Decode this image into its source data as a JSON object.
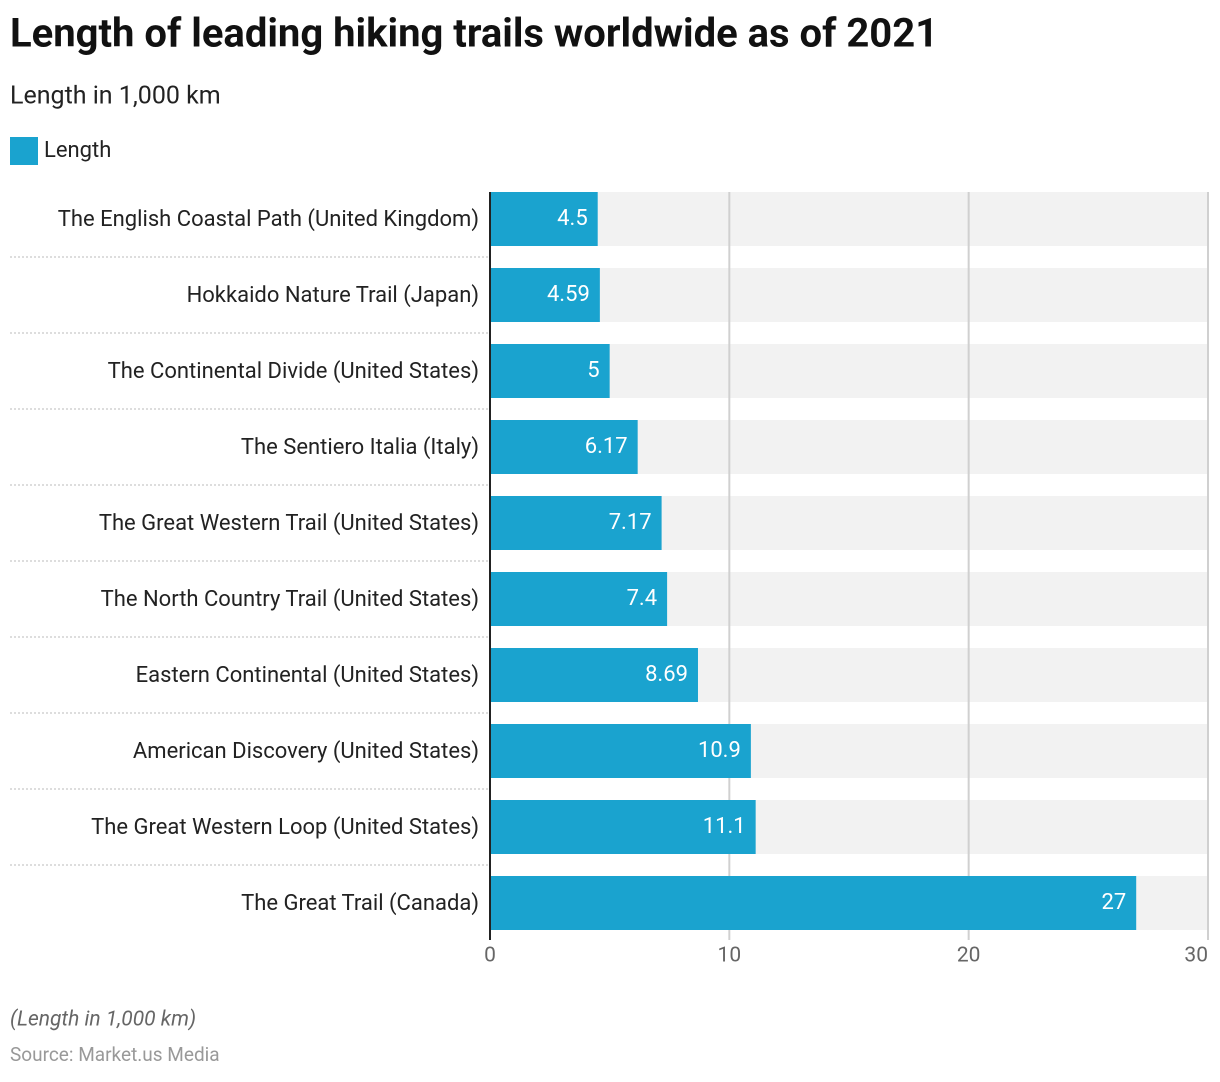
{
  "chart_data": {
    "type": "hbar",
    "title": "Length of leading hiking trails worldwide as of 2021",
    "subtitle": "Length in 1,000 km",
    "categories": [
      "The English Coastal Path (United Kingdom)",
      "Hokkaido Nature Trail (Japan)",
      "The Continental Divide (United States)",
      "The Sentiero Italia (Italy)",
      "The Great Western Trail (United States)",
      "The North Country Trail (United States)",
      "Eastern Continental (United States)",
      "American Discovery (United States)",
      "The Great Western Loop (United States)",
      "The Great Trail (Canada)"
    ],
    "series": [
      {
        "name": "Length",
        "color": "#1aa3cf",
        "values": [
          4.5,
          4.59,
          5,
          6.17,
          7.17,
          7.4,
          8.69,
          10.9,
          11.1,
          27
        ]
      }
    ],
    "xlim": [
      0,
      30
    ],
    "xticks": [
      0,
      10,
      20,
      30
    ],
    "grid": true,
    "note": "(Length in 1,000 km)",
    "source": "Source: Market.us Media"
  }
}
